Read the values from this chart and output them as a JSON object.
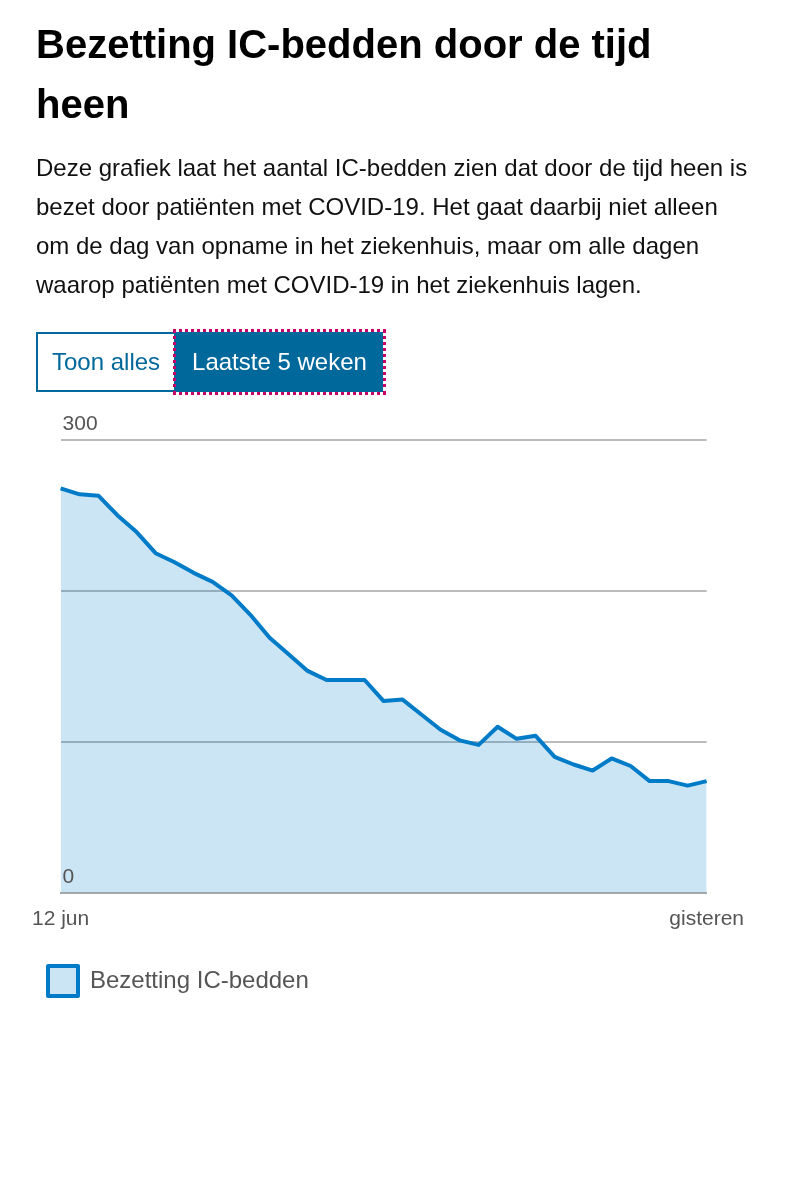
{
  "chart_data": {
    "type": "area",
    "title": "Bezetting IC-bedden door de tijd heen",
    "subtitle": "Deze grafiek laat het aantal IC-bedden zien dat door de tijd heen is bezet door patiënten met COVID-19. Het gaat daarbij niet alleen om de dag van opname in het ziekenhuis, maar om alle dagen waarop patiënten met COVID-19 in het ziekenhuis lagen.",
    "annotations": [
      "Toon alles",
      "Laatste 5 weken"
    ],
    "categories": [
      "12 jun",
      null,
      null,
      null,
      null,
      null,
      null,
      null,
      null,
      null,
      null,
      null,
      null,
      null,
      null,
      null,
      null,
      null,
      null,
      null,
      null,
      null,
      null,
      null,
      null,
      null,
      null,
      null,
      null,
      null,
      null,
      null,
      null,
      null,
      "gisteren"
    ],
    "series": [
      {
        "name": "Bezetting IC-bedden",
        "color": "#007bc7",
        "values": [
          268,
          264,
          263,
          250,
          239,
          225,
          219,
          212,
          206,
          197,
          184,
          169,
          158,
          147,
          141,
          141,
          141,
          127,
          128,
          118,
          108,
          101,
          98,
          110,
          102,
          104,
          90,
          85,
          81,
          89,
          84,
          74,
          74,
          71,
          74
        ]
      }
    ],
    "ylim": [
      0,
      300
    ],
    "yticks": [
      0,
      {
        "value": 100,
        "label": null
      },
      {
        "value": 200,
        "label": null
      },
      300
    ],
    "grid": "y",
    "legend": "bottom left"
  }
}
